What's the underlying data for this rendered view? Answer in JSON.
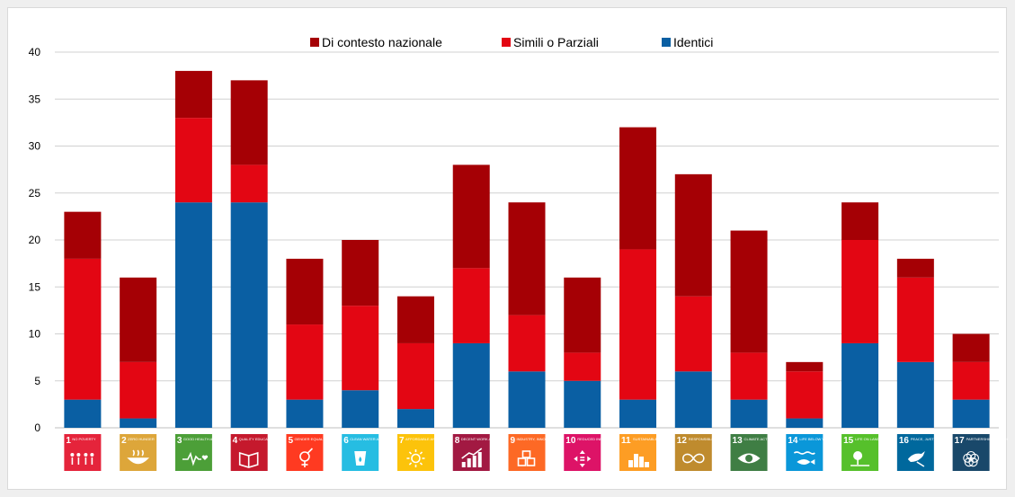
{
  "chart_data": {
    "type": "bar",
    "stacked": true,
    "categories": [
      "1",
      "2",
      "3",
      "4",
      "5",
      "6",
      "7",
      "8",
      "9",
      "10",
      "11",
      "12",
      "13",
      "14",
      "15",
      "16",
      "17"
    ],
    "series": [
      {
        "name": "Identici",
        "color": "#0a5fa3",
        "values": [
          3,
          1,
          24,
          24,
          3,
          4,
          2,
          9,
          6,
          5,
          3,
          6,
          3,
          1,
          9,
          7,
          3
        ]
      },
      {
        "name": "Simili o Parziali",
        "color": "#e30613",
        "values": [
          15,
          6,
          9,
          4,
          8,
          9,
          7,
          8,
          6,
          3,
          16,
          8,
          5,
          5,
          11,
          9,
          4
        ]
      },
      {
        "name": "Di contesto nazionale",
        "color": "#a50005",
        "values": [
          5,
          9,
          5,
          9,
          7,
          7,
          5,
          11,
          12,
          8,
          13,
          13,
          13,
          1,
          4,
          2,
          3
        ]
      }
    ],
    "legend_order": [
      "Di contesto nazionale",
      "Simili o Parziali",
      "Identici"
    ],
    "legend_position": "top-center",
    "ylim": [
      0,
      40
    ],
    "yticks": [
      0,
      5,
      10,
      15,
      20,
      25,
      30,
      35,
      40
    ],
    "grid": true,
    "title": "",
    "xlabel": "",
    "ylabel": ""
  },
  "sdg_icons": [
    {
      "num": "1",
      "caption": "NO POVERTY",
      "color": "#e5243b",
      "icon": "family-icon"
    },
    {
      "num": "2",
      "caption": "ZERO HUNGER",
      "color": "#dda63a",
      "icon": "bowl-icon"
    },
    {
      "num": "3",
      "caption": "GOOD HEALTH AND WELL-BEING",
      "color": "#4c9f38",
      "icon": "heartbeat-icon"
    },
    {
      "num": "4",
      "caption": "QUALITY EDUCATION",
      "color": "#c5192d",
      "icon": "book-icon"
    },
    {
      "num": "5",
      "caption": "GENDER EQUALITY",
      "color": "#ff3a21",
      "icon": "gender-icon"
    },
    {
      "num": "6",
      "caption": "CLEAN WATER AND SANITATION",
      "color": "#26bde2",
      "icon": "water-icon"
    },
    {
      "num": "7",
      "caption": "AFFORDABLE AND CLEAN ENERGY",
      "color": "#fcc30b",
      "icon": "sun-icon"
    },
    {
      "num": "8",
      "caption": "DECENT WORK AND ECONOMIC GROWTH",
      "color": "#a21942",
      "icon": "growth-chart-icon"
    },
    {
      "num": "9",
      "caption": "INDUSTRY, INNOVATION AND INFRASTRUCTURE",
      "color": "#fd6925",
      "icon": "cubes-icon"
    },
    {
      "num": "10",
      "caption": "REDUCED INEQUALITIES",
      "color": "#dd1367",
      "icon": "equality-icon"
    },
    {
      "num": "11",
      "caption": "SUSTAINABLE CITIES AND COMMUNITIES",
      "color": "#fd9d24",
      "icon": "city-icon"
    },
    {
      "num": "12",
      "caption": "RESPONSIBLE CONSUMPTION AND PRODUCTION",
      "color": "#bf8b2e",
      "icon": "infinity-icon"
    },
    {
      "num": "13",
      "caption": "CLIMATE ACTION",
      "color": "#3f7e44",
      "icon": "eye-icon"
    },
    {
      "num": "14",
      "caption": "LIFE BELOW WATER",
      "color": "#0a97d9",
      "icon": "fish-icon"
    },
    {
      "num": "15",
      "caption": "LIFE ON LAND",
      "color": "#56c02b",
      "icon": "tree-icon"
    },
    {
      "num": "16",
      "caption": "PEACE, JUSTICE AND STRONG INSTITUTIONS",
      "color": "#00689d",
      "icon": "dove-icon"
    },
    {
      "num": "17",
      "caption": "PARTNERSHIPS FOR THE GOALS",
      "color": "#19486a",
      "icon": "rings-icon"
    }
  ]
}
